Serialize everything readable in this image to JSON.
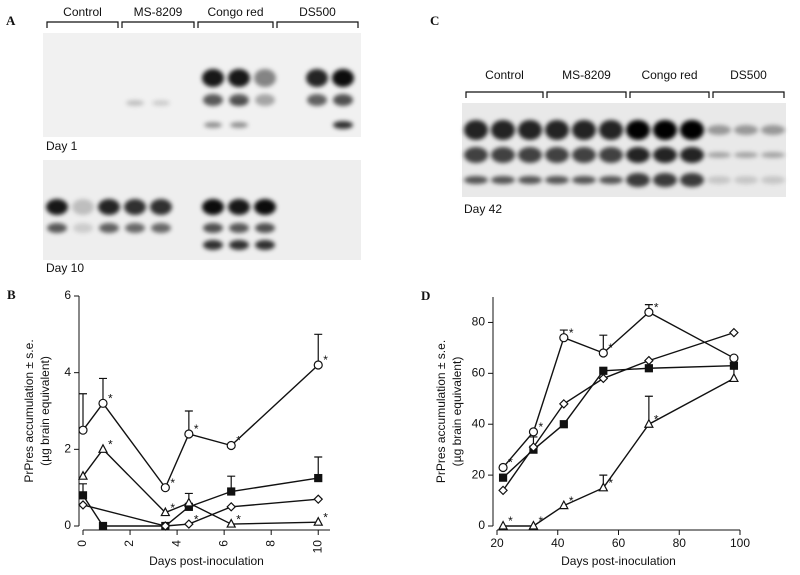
{
  "panels": {
    "a": {
      "label": "A",
      "groups": [
        "Control",
        "MS-8209",
        "Congo red",
        "DS500"
      ],
      "days": [
        "Day 1",
        "Day 10"
      ]
    },
    "c": {
      "label": "C",
      "groups": [
        "Control",
        "MS-8209",
        "Congo red",
        "DS500"
      ],
      "day": "Day 42"
    }
  },
  "chart_data": [
    {
      "type": "line",
      "label": "B",
      "ylabel": [
        "PrPres accumulation ± s.e.",
        "(µg brain equivalent)"
      ],
      "xlabel": "Days post-inoculation",
      "xlim": [
        0,
        10.5
      ],
      "xticks": [
        0,
        2,
        4,
        6,
        8,
        10
      ],
      "ylim": [
        0,
        6
      ],
      "yticks": [
        0,
        2,
        4,
        6
      ],
      "series": [
        {
          "marker": "circle",
          "x": [
            0,
            0.85,
            3.5,
            4.5,
            6.3,
            10
          ],
          "values": [
            2.5,
            3.2,
            1.0,
            2.4,
            2.1,
            4.2
          ],
          "errors": [
            0.95,
            0.65,
            null,
            0.6,
            null,
            0.8
          ],
          "labels": [
            null,
            "*",
            "*",
            "*",
            "*",
            "*"
          ]
        },
        {
          "marker": "square",
          "x": [
            0,
            0.85,
            3.5,
            4.5,
            6.3,
            10
          ],
          "values": [
            0.8,
            0,
            0,
            0.5,
            0.9,
            1.25
          ],
          "errors": [
            0.3,
            null,
            null,
            0.35,
            0.4,
            0.55
          ],
          "labels": [
            null,
            null,
            null,
            null,
            null,
            null
          ]
        },
        {
          "marker": "diamond",
          "x": [
            0,
            3.5,
            4.5,
            6.3,
            10
          ],
          "values": [
            0.55,
            0,
            0.05,
            0.5,
            0.7
          ],
          "errors": [
            null,
            null,
            null,
            null,
            null
          ],
          "labels": [
            null,
            null,
            "*",
            null,
            null
          ]
        },
        {
          "marker": "triangle",
          "x": [
            0,
            0.85,
            3.5,
            4.5,
            6.3,
            10
          ],
          "values": [
            1.3,
            2.0,
            0.35,
            0.6,
            0.05,
            0.1
          ],
          "errors": [
            null,
            null,
            null,
            null,
            null,
            null
          ],
          "labels": [
            null,
            "*",
            "*",
            null,
            "*",
            "*"
          ]
        }
      ]
    },
    {
      "type": "line",
      "label": "D",
      "ylabel": [
        "PrPres accumulation ± s.e.",
        "(µg brain equivalent)"
      ],
      "xlabel": "Days post-inoculation",
      "xlim": [
        20,
        100
      ],
      "xticks": [
        20,
        40,
        60,
        80,
        100
      ],
      "ylim": [
        0,
        90
      ],
      "yticks": [
        0,
        20,
        40,
        60,
        80
      ],
      "series": [
        {
          "marker": "circle",
          "x": [
            22,
            32,
            42,
            55,
            70,
            98
          ],
          "values": [
            23,
            37,
            74,
            68,
            84,
            66
          ],
          "errors": [
            null,
            null,
            3,
            7,
            3,
            null
          ],
          "labels": [
            "*",
            "*",
            "*",
            "*",
            "*",
            null
          ]
        },
        {
          "marker": "square",
          "x": [
            22,
            32,
            42,
            55,
            70,
            98
          ],
          "values": [
            19,
            30,
            40,
            61,
            62,
            63
          ],
          "errors": [
            null,
            5,
            null,
            null,
            3,
            null
          ],
          "labels": [
            null,
            null,
            null,
            null,
            null,
            null
          ]
        },
        {
          "marker": "diamond",
          "x": [
            22,
            32,
            42,
            55,
            70,
            98
          ],
          "values": [
            14,
            31,
            48,
            58,
            65,
            76
          ],
          "errors": [
            null,
            null,
            null,
            null,
            null,
            null
          ],
          "labels": [
            null,
            null,
            null,
            null,
            null,
            null
          ]
        },
        {
          "marker": "triangle",
          "x": [
            22,
            32,
            42,
            55,
            70,
            98
          ],
          "values": [
            0,
            0,
            8,
            15,
            40,
            58
          ],
          "errors": [
            null,
            null,
            null,
            5,
            11,
            6
          ],
          "labels": [
            "*",
            "*",
            "*",
            "*",
            "*",
            null
          ]
        }
      ]
    }
  ]
}
